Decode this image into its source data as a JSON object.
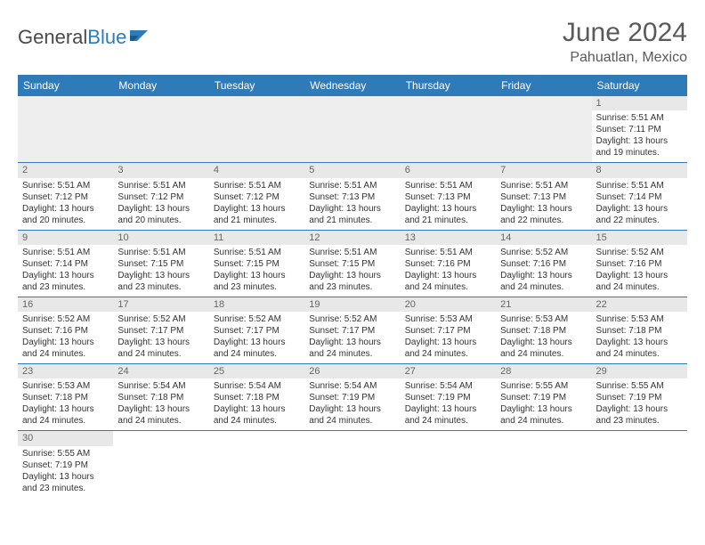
{
  "logo": {
    "text1": "General",
    "text2": "Blue"
  },
  "title": "June 2024",
  "location": "Pahuatlan, Mexico",
  "colors": {
    "header_bg": "#2f7ab8",
    "header_text": "#ffffff",
    "grid_line": "#2f7ab8",
    "daynum_bg": "#e8e8e8",
    "body_text": "#333333",
    "title_text": "#5a5a5a"
  },
  "day_headers": [
    "Sunday",
    "Monday",
    "Tuesday",
    "Wednesday",
    "Thursday",
    "Friday",
    "Saturday"
  ],
  "weeks": [
    [
      null,
      null,
      null,
      null,
      null,
      null,
      {
        "n": "1",
        "sr": "Sunrise: 5:51 AM",
        "ss": "Sunset: 7:11 PM",
        "d1": "Daylight: 13 hours",
        "d2": "and 19 minutes."
      }
    ],
    [
      {
        "n": "2",
        "sr": "Sunrise: 5:51 AM",
        "ss": "Sunset: 7:12 PM",
        "d1": "Daylight: 13 hours",
        "d2": "and 20 minutes."
      },
      {
        "n": "3",
        "sr": "Sunrise: 5:51 AM",
        "ss": "Sunset: 7:12 PM",
        "d1": "Daylight: 13 hours",
        "d2": "and 20 minutes."
      },
      {
        "n": "4",
        "sr": "Sunrise: 5:51 AM",
        "ss": "Sunset: 7:12 PM",
        "d1": "Daylight: 13 hours",
        "d2": "and 21 minutes."
      },
      {
        "n": "5",
        "sr": "Sunrise: 5:51 AM",
        "ss": "Sunset: 7:13 PM",
        "d1": "Daylight: 13 hours",
        "d2": "and 21 minutes."
      },
      {
        "n": "6",
        "sr": "Sunrise: 5:51 AM",
        "ss": "Sunset: 7:13 PM",
        "d1": "Daylight: 13 hours",
        "d2": "and 21 minutes."
      },
      {
        "n": "7",
        "sr": "Sunrise: 5:51 AM",
        "ss": "Sunset: 7:13 PM",
        "d1": "Daylight: 13 hours",
        "d2": "and 22 minutes."
      },
      {
        "n": "8",
        "sr": "Sunrise: 5:51 AM",
        "ss": "Sunset: 7:14 PM",
        "d1": "Daylight: 13 hours",
        "d2": "and 22 minutes."
      }
    ],
    [
      {
        "n": "9",
        "sr": "Sunrise: 5:51 AM",
        "ss": "Sunset: 7:14 PM",
        "d1": "Daylight: 13 hours",
        "d2": "and 23 minutes."
      },
      {
        "n": "10",
        "sr": "Sunrise: 5:51 AM",
        "ss": "Sunset: 7:15 PM",
        "d1": "Daylight: 13 hours",
        "d2": "and 23 minutes."
      },
      {
        "n": "11",
        "sr": "Sunrise: 5:51 AM",
        "ss": "Sunset: 7:15 PM",
        "d1": "Daylight: 13 hours",
        "d2": "and 23 minutes."
      },
      {
        "n": "12",
        "sr": "Sunrise: 5:51 AM",
        "ss": "Sunset: 7:15 PM",
        "d1": "Daylight: 13 hours",
        "d2": "and 23 minutes."
      },
      {
        "n": "13",
        "sr": "Sunrise: 5:51 AM",
        "ss": "Sunset: 7:16 PM",
        "d1": "Daylight: 13 hours",
        "d2": "and 24 minutes."
      },
      {
        "n": "14",
        "sr": "Sunrise: 5:52 AM",
        "ss": "Sunset: 7:16 PM",
        "d1": "Daylight: 13 hours",
        "d2": "and 24 minutes."
      },
      {
        "n": "15",
        "sr": "Sunrise: 5:52 AM",
        "ss": "Sunset: 7:16 PM",
        "d1": "Daylight: 13 hours",
        "d2": "and 24 minutes."
      }
    ],
    [
      {
        "n": "16",
        "sr": "Sunrise: 5:52 AM",
        "ss": "Sunset: 7:16 PM",
        "d1": "Daylight: 13 hours",
        "d2": "and 24 minutes."
      },
      {
        "n": "17",
        "sr": "Sunrise: 5:52 AM",
        "ss": "Sunset: 7:17 PM",
        "d1": "Daylight: 13 hours",
        "d2": "and 24 minutes."
      },
      {
        "n": "18",
        "sr": "Sunrise: 5:52 AM",
        "ss": "Sunset: 7:17 PM",
        "d1": "Daylight: 13 hours",
        "d2": "and 24 minutes."
      },
      {
        "n": "19",
        "sr": "Sunrise: 5:52 AM",
        "ss": "Sunset: 7:17 PM",
        "d1": "Daylight: 13 hours",
        "d2": "and 24 minutes."
      },
      {
        "n": "20",
        "sr": "Sunrise: 5:53 AM",
        "ss": "Sunset: 7:17 PM",
        "d1": "Daylight: 13 hours",
        "d2": "and 24 minutes."
      },
      {
        "n": "21",
        "sr": "Sunrise: 5:53 AM",
        "ss": "Sunset: 7:18 PM",
        "d1": "Daylight: 13 hours",
        "d2": "and 24 minutes."
      },
      {
        "n": "22",
        "sr": "Sunrise: 5:53 AM",
        "ss": "Sunset: 7:18 PM",
        "d1": "Daylight: 13 hours",
        "d2": "and 24 minutes."
      }
    ],
    [
      {
        "n": "23",
        "sr": "Sunrise: 5:53 AM",
        "ss": "Sunset: 7:18 PM",
        "d1": "Daylight: 13 hours",
        "d2": "and 24 minutes."
      },
      {
        "n": "24",
        "sr": "Sunrise: 5:54 AM",
        "ss": "Sunset: 7:18 PM",
        "d1": "Daylight: 13 hours",
        "d2": "and 24 minutes."
      },
      {
        "n": "25",
        "sr": "Sunrise: 5:54 AM",
        "ss": "Sunset: 7:18 PM",
        "d1": "Daylight: 13 hours",
        "d2": "and 24 minutes."
      },
      {
        "n": "26",
        "sr": "Sunrise: 5:54 AM",
        "ss": "Sunset: 7:19 PM",
        "d1": "Daylight: 13 hours",
        "d2": "and 24 minutes."
      },
      {
        "n": "27",
        "sr": "Sunrise: 5:54 AM",
        "ss": "Sunset: 7:19 PM",
        "d1": "Daylight: 13 hours",
        "d2": "and 24 minutes."
      },
      {
        "n": "28",
        "sr": "Sunrise: 5:55 AM",
        "ss": "Sunset: 7:19 PM",
        "d1": "Daylight: 13 hours",
        "d2": "and 24 minutes."
      },
      {
        "n": "29",
        "sr": "Sunrise: 5:55 AM",
        "ss": "Sunset: 7:19 PM",
        "d1": "Daylight: 13 hours",
        "d2": "and 23 minutes."
      }
    ],
    [
      {
        "n": "30",
        "sr": "Sunrise: 5:55 AM",
        "ss": "Sunset: 7:19 PM",
        "d1": "Daylight: 13 hours",
        "d2": "and 23 minutes."
      },
      null,
      null,
      null,
      null,
      null,
      null
    ]
  ]
}
